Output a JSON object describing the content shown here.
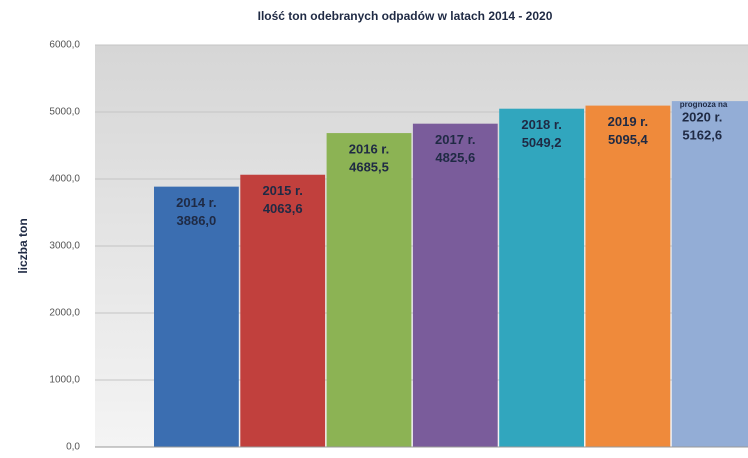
{
  "chart_data": {
    "type": "bar",
    "title": "Ilość ton odebranych odpadów w latach 2014 - 2020",
    "y_label": "liczba ton",
    "annotation": "prognoza na",
    "categories": [
      "2014 r.",
      "2015 r.",
      "2016 r.",
      "2017 r.",
      "2018 r.",
      "2019 r.",
      "2020 r."
    ],
    "values": [
      3886.0,
      4063.6,
      4685.5,
      4825.6,
      5049.2,
      5095.4,
      5162.6
    ],
    "value_labels": [
      "3886,0",
      "4063,6",
      "4685,5",
      "4825,6",
      "5049,2",
      "5095,4",
      "5162,6"
    ],
    "colors": [
      "#3b6eb1",
      "#c1403d",
      "#8cb354",
      "#7a5c9b",
      "#31a6be",
      "#ef8a3b",
      "#93add6"
    ],
    "ylim": [
      0,
      6000
    ],
    "yticks": [
      {
        "value": 0,
        "label": "0,0"
      },
      {
        "value": 1000,
        "label": "1000,0"
      },
      {
        "value": 2000,
        "label": "2000,0"
      },
      {
        "value": 3000,
        "label": "3000,0"
      },
      {
        "value": 4000,
        "label": "4000,0"
      },
      {
        "value": 5000,
        "label": "5000,0"
      },
      {
        "value": 6000,
        "label": "6000,0"
      }
    ],
    "grid": true
  }
}
